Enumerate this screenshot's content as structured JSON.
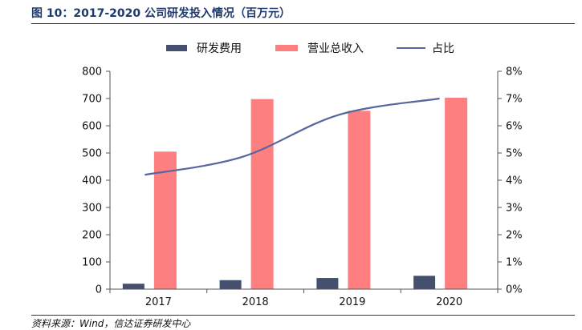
{
  "title": "图 10：2017-2020 公司研发投入情况（百万元）",
  "source": "资料来源：Wind，信达证券研发中心",
  "colors": {
    "rd_bar": "#454f6e",
    "revenue_bar": "#fe7f7f",
    "ratio_line": "#5566a0",
    "axis": "#555555",
    "text": "#111111",
    "title": "#1f3a6e"
  },
  "chart_data": {
    "type": "bar",
    "categories": [
      "2017",
      "2018",
      "2019",
      "2020"
    ],
    "series": [
      {
        "name": "研发费用",
        "type": "bar",
        "axis": "left",
        "values": [
          20,
          33,
          41,
          49
        ]
      },
      {
        "name": "营业总收入",
        "type": "bar",
        "axis": "left",
        "values": [
          505,
          698,
          655,
          703
        ]
      },
      {
        "name": "占比",
        "type": "line",
        "axis": "right",
        "values": [
          4.2,
          4.85,
          6.4,
          7.0
        ]
      }
    ],
    "y_left": {
      "min": 0,
      "max": 800,
      "ticks": [
        "0",
        "100",
        "200",
        "300",
        "400",
        "500",
        "600",
        "700",
        "800"
      ]
    },
    "y_right": {
      "min": 0,
      "max": 8,
      "ticks": [
        "0%",
        "1%",
        "2%",
        "3%",
        "4%",
        "5%",
        "6%",
        "7%",
        "8%"
      ]
    },
    "legend_position": "top",
    "grid": false
  }
}
